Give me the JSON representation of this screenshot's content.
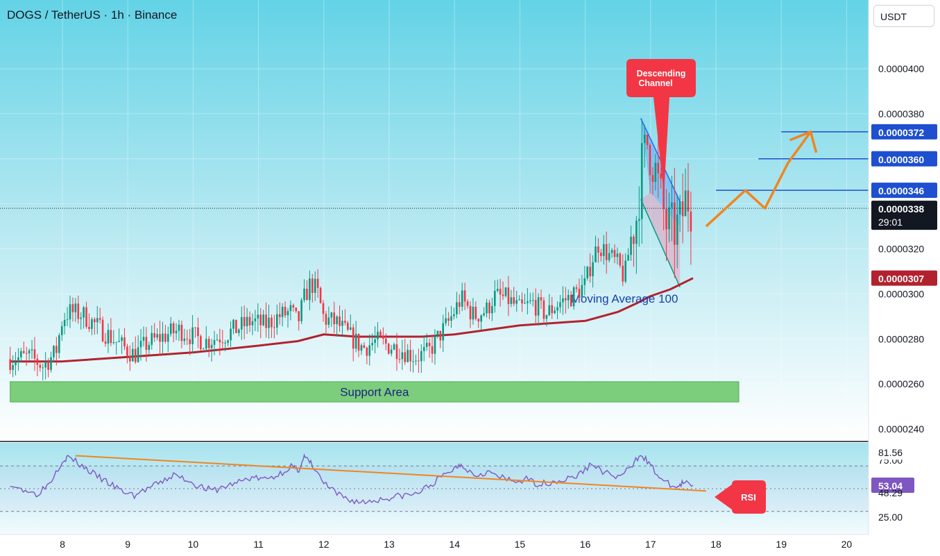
{
  "header": {
    "title": "DOGS / TetherUS · 1h · Binance",
    "currency": "USDT"
  },
  "colors": {
    "background_top": "#63d3e6",
    "background_bottom": "#ffffff",
    "candle_up": "#089981",
    "candle_down": "#f23645",
    "ma_line": "#b2222e",
    "target_line": "#1e4fd0",
    "projection": "#f08520",
    "support": "#7ccd7c",
    "rsi_line": "#7e57c2",
    "label_red": "#f23645"
  },
  "chart_data": [
    {
      "type": "candlestick",
      "symbol": "DOGS / TetherUS",
      "interval": "1h",
      "exchange": "Binance",
      "x_ticks": [
        "8",
        "9",
        "10",
        "11",
        "12",
        "13",
        "14",
        "15",
        "16",
        "17",
        "18",
        "19",
        "20"
      ],
      "y_ticks": [
        "0.0000400",
        "0.0000380",
        "0.0000360",
        "0.0000340",
        "0.0000320",
        "0.0000300",
        "0.0000280",
        "0.0000260",
        "0.0000240"
      ],
      "ylim": [
        2.34e-05,
        4.24e-05
      ],
      "xlim": [
        7.2,
        20.4
      ],
      "close_path": [
        [
          7.2,
          2.71e-05
        ],
        [
          7.5,
          2.72e-05
        ],
        [
          7.7,
          2.68e-05
        ],
        [
          7.9,
          2.74e-05
        ],
        [
          8.0,
          2.89e-05
        ],
        [
          8.1,
          2.92e-05
        ],
        [
          8.3,
          2.91e-05
        ],
        [
          8.6,
          2.84e-05
        ],
        [
          8.9,
          2.77e-05
        ],
        [
          9.1,
          2.73e-05
        ],
        [
          9.3,
          2.78e-05
        ],
        [
          9.6,
          2.82e-05
        ],
        [
          9.8,
          2.84e-05
        ],
        [
          10.0,
          2.81e-05
        ],
        [
          10.2,
          2.79e-05
        ],
        [
          10.5,
          2.82e-05
        ],
        [
          10.7,
          2.85e-05
        ],
        [
          10.9,
          2.88e-05
        ],
        [
          11.1,
          2.86e-05
        ],
        [
          11.3,
          2.9e-05
        ],
        [
          11.5,
          2.92e-05
        ],
        [
          11.6,
          2.87e-05
        ],
        [
          11.7,
          2.98e-05
        ],
        [
          11.8,
          3.05e-05
        ],
        [
          11.9,
          3.01e-05
        ],
        [
          12.0,
          2.89e-05
        ],
        [
          12.2,
          2.87e-05
        ],
        [
          12.4,
          2.81e-05
        ],
        [
          12.6,
          2.76e-05
        ],
        [
          12.8,
          2.79e-05
        ],
        [
          13.0,
          2.77e-05
        ],
        [
          13.2,
          2.75e-05
        ],
        [
          13.4,
          2.72e-05
        ],
        [
          13.6,
          2.74e-05
        ],
        [
          13.8,
          2.83e-05
        ],
        [
          13.9,
          2.87e-05
        ],
        [
          14.1,
          2.98e-05
        ],
        [
          14.3,
          2.9e-05
        ],
        [
          14.5,
          2.93e-05
        ],
        [
          14.6,
          2.99e-05
        ],
        [
          14.8,
          2.98e-05
        ],
        [
          15.0,
          2.93e-05
        ],
        [
          15.2,
          2.96e-05
        ],
        [
          15.4,
          2.91e-05
        ],
        [
          15.6,
          2.96e-05
        ],
        [
          15.8,
          2.99e-05
        ],
        [
          16.0,
          3.04e-05
        ],
        [
          16.1,
          3.15e-05
        ],
        [
          16.2,
          3.22e-05
        ],
        [
          16.4,
          3.16e-05
        ],
        [
          16.5,
          3.13e-05
        ],
        [
          16.6,
          3.07e-05
        ],
        [
          16.7,
          3.25e-05
        ],
        [
          16.8,
          3.36e-05
        ],
        [
          16.85,
          3.55e-05
        ],
        [
          16.95,
          3.67e-05
        ],
        [
          17.05,
          3.58e-05
        ],
        [
          17.15,
          3.43e-05
        ],
        [
          17.25,
          3.3e-05
        ],
        [
          17.35,
          3.28e-05
        ],
        [
          17.45,
          3.31e-05
        ],
        [
          17.55,
          3.43e-05
        ],
        [
          17.65,
          3.38e-05
        ]
      ],
      "levels": [
        {
          "label": "0.0000372",
          "value": 3.72e-05,
          "from_x": 19.0
        },
        {
          "label": "0.0000360",
          "value": 3.6e-05,
          "from_x": 18.65
        },
        {
          "label": "0.0000346",
          "value": 3.46e-05,
          "from_x": 18.0
        }
      ],
      "moving_average": {
        "label": "Moving Average 100",
        "price_label": "0.0000307",
        "value": 3.07e-05,
        "path": [
          [
            7.2,
            2.7e-05
          ],
          [
            8.0,
            2.7e-05
          ],
          [
            9.0,
            2.72e-05
          ],
          [
            10.0,
            2.74e-05
          ],
          [
            11.0,
            2.77e-05
          ],
          [
            11.6,
            2.79e-05
          ],
          [
            12.0,
            2.82e-05
          ],
          [
            12.5,
            2.81e-05
          ],
          [
            13.0,
            2.81e-05
          ],
          [
            13.5,
            2.81e-05
          ],
          [
            14.0,
            2.82e-05
          ],
          [
            14.5,
            2.84e-05
          ],
          [
            15.0,
            2.86e-05
          ],
          [
            15.5,
            2.87e-05
          ],
          [
            16.0,
            2.88e-05
          ],
          [
            16.5,
            2.92e-05
          ],
          [
            16.8,
            2.96e-05
          ],
          [
            17.0,
            2.99e-05
          ],
          [
            17.3,
            3.02e-05
          ],
          [
            17.65,
            3.07e-05
          ]
        ]
      },
      "last_price": {
        "label": "0.0000338",
        "countdown": "29:01",
        "value": 3.38e-05
      },
      "support_area": {
        "label": "Support Area",
        "y_range": [
          2.52e-05,
          2.61e-05
        ],
        "x_range": [
          7.2,
          18.35
        ]
      },
      "descending_channel": {
        "label": "Descending Channel",
        "upper": [
          [
            16.85,
            3.78e-05
          ],
          [
            17.45,
            3.41e-05
          ]
        ],
        "lower": [
          [
            16.85,
            3.42e-05
          ],
          [
            17.45,
            3.03e-05
          ]
        ]
      },
      "projection": [
        [
          17.85,
          3.3e-05
        ],
        [
          18.45,
          3.46e-05
        ],
        [
          18.75,
          3.38e-05
        ],
        [
          19.1,
          3.58e-05
        ],
        [
          19.45,
          3.72e-05
        ]
      ]
    },
    {
      "type": "line",
      "name": "RSI",
      "label": "RSI",
      "y_ticks": [
        "81.56",
        "75.00",
        "53.04",
        "48.29",
        "25.00"
      ],
      "value_labels": {
        "overbought": "81.56",
        "current": "53.04",
        "lower": "48.29"
      },
      "ylim": [
        18,
        95
      ],
      "bands": [
        70,
        50,
        30
      ],
      "values": [
        [
          7.2,
          52
        ],
        [
          7.4,
          50
        ],
        [
          7.6,
          45
        ],
        [
          7.8,
          55
        ],
        [
          8.0,
          75
        ],
        [
          8.1,
          78
        ],
        [
          8.3,
          70
        ],
        [
          8.5,
          62
        ],
        [
          8.7,
          55
        ],
        [
          8.9,
          48
        ],
        [
          9.1,
          44
        ],
        [
          9.3,
          50
        ],
        [
          9.5,
          55
        ],
        [
          9.7,
          62
        ],
        [
          9.9,
          58
        ],
        [
          10.1,
          52
        ],
        [
          10.3,
          48
        ],
        [
          10.5,
          52
        ],
        [
          10.7,
          56
        ],
        [
          10.9,
          60
        ],
        [
          11.1,
          58
        ],
        [
          11.3,
          62
        ],
        [
          11.5,
          70
        ],
        [
          11.6,
          65
        ],
        [
          11.7,
          78
        ],
        [
          11.8,
          72
        ],
        [
          12.0,
          55
        ],
        [
          12.2,
          45
        ],
        [
          12.4,
          40
        ],
        [
          12.6,
          38
        ],
        [
          12.8,
          40
        ],
        [
          13.0,
          42
        ],
        [
          13.2,
          44
        ],
        [
          13.4,
          45
        ],
        [
          13.6,
          52
        ],
        [
          13.8,
          60
        ],
        [
          14.0,
          68
        ],
        [
          14.1,
          72
        ],
        [
          14.3,
          62
        ],
        [
          14.5,
          65
        ],
        [
          14.7,
          60
        ],
        [
          14.9,
          56
        ],
        [
          15.1,
          58
        ],
        [
          15.3,
          54
        ],
        [
          15.5,
          56
        ],
        [
          15.7,
          58
        ],
        [
          15.9,
          62
        ],
        [
          16.1,
          72
        ],
        [
          16.3,
          64
        ],
        [
          16.5,
          60
        ],
        [
          16.7,
          68
        ],
        [
          16.85,
          81.5
        ],
        [
          17.0,
          70
        ],
        [
          17.2,
          56
        ],
        [
          17.4,
          51
        ],
        [
          17.5,
          55
        ],
        [
          17.65,
          53
        ]
      ],
      "trendline": [
        [
          8.2,
          79
        ],
        [
          17.85,
          48
        ]
      ]
    }
  ]
}
